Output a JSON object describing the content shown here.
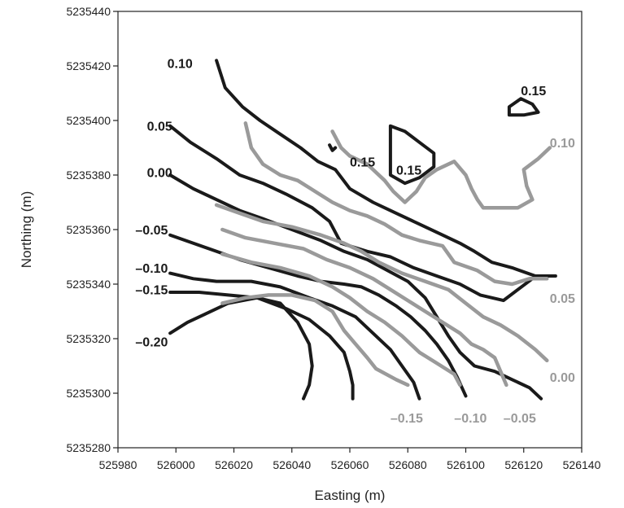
{
  "chart_data": {
    "type": "line",
    "subtype": "contour",
    "title": "",
    "xlabel": "Easting (m)",
    "ylabel": "Northing (m)",
    "xlim": [
      525980,
      526140
    ],
    "ylim": [
      5235280,
      5235440
    ],
    "xticks": [
      525980,
      526000,
      526020,
      526040,
      526060,
      526080,
      526100,
      526120,
      526140
    ],
    "yticks": [
      5235280,
      5235300,
      5235320,
      5235340,
      5235360,
      5235380,
      5235400,
      5235420,
      5235440
    ],
    "grid": false,
    "colors": {
      "black_series": "#1a1a1a",
      "gray_series": "#9a9a9a"
    },
    "series": [
      {
        "group": "black",
        "level": "0.10",
        "label_text": "0.10",
        "label_at": [
          525997,
          5235421
        ],
        "points": [
          [
            526014,
            5235422
          ],
          [
            526017,
            5235412
          ],
          [
            526023,
            5235405
          ],
          [
            526029,
            5235400
          ],
          [
            526036,
            5235395
          ],
          [
            526043,
            5235390
          ],
          [
            526049,
            5235385
          ],
          [
            526055,
            5235382
          ],
          [
            526060,
            5235375
          ],
          [
            526068,
            5235370
          ],
          [
            526076,
            5235366
          ],
          [
            526084,
            5235362
          ],
          [
            526092,
            5235358
          ],
          [
            526098,
            5235355
          ],
          [
            526103,
            5235352
          ],
          [
            526109,
            5235348
          ],
          [
            526116,
            5235346
          ],
          [
            526124,
            5235343
          ],
          [
            526131,
            5235343
          ]
        ]
      },
      {
        "group": "black",
        "level": "0.05",
        "label_text": "0.05",
        "label_at": [
          525990,
          5235398
        ],
        "points": [
          [
            525998,
            5235398
          ],
          [
            526005,
            5235392
          ],
          [
            526014,
            5235386
          ],
          [
            526022,
            5235380
          ],
          [
            526030,
            5235377
          ],
          [
            526038,
            5235373
          ],
          [
            526047,
            5235368
          ],
          [
            526053,
            5235363
          ],
          [
            526057,
            5235355
          ],
          [
            526066,
            5235352
          ],
          [
            526074,
            5235350
          ],
          [
            526082,
            5235346
          ],
          [
            526090,
            5235343
          ],
          [
            526098,
            5235340
          ],
          [
            526105,
            5235336
          ],
          [
            526113,
            5235334
          ],
          [
            526123,
            5235342
          ]
        ]
      },
      {
        "group": "black",
        "level": "0.00",
        "label_text": "0.00",
        "label_at": [
          525990,
          5235381
        ],
        "points": [
          [
            525998,
            5235380
          ],
          [
            526006,
            5235375
          ],
          [
            526014,
            5235371
          ],
          [
            526022,
            5235367
          ],
          [
            526030,
            5235364
          ],
          [
            526040,
            5235360
          ],
          [
            526050,
            5235356
          ],
          [
            526058,
            5235352
          ],
          [
            526066,
            5235349
          ],
          [
            526073,
            5235345
          ],
          [
            526080,
            5235341
          ],
          [
            526086,
            5235335
          ],
          [
            526090,
            5235328
          ],
          [
            526094,
            5235321
          ],
          [
            526098,
            5235315
          ],
          [
            526103,
            5235310
          ],
          [
            526110,
            5235308
          ],
          [
            526116,
            5235305
          ],
          [
            526122,
            5235302
          ],
          [
            526126,
            5235298
          ]
        ]
      },
      {
        "group": "black",
        "level": "-0.05",
        "label_text": "–0.05",
        "label_at": [
          525986,
          5235360
        ],
        "points": [
          [
            525998,
            5235358
          ],
          [
            526006,
            5235355
          ],
          [
            526014,
            5235352
          ],
          [
            526022,
            5235349
          ],
          [
            526032,
            5235346
          ],
          [
            526042,
            5235343
          ],
          [
            526050,
            5235341
          ],
          [
            526058,
            5235340
          ],
          [
            526064,
            5235339
          ],
          [
            526070,
            5235336
          ],
          [
            526076,
            5235332
          ],
          [
            526081,
            5235328
          ],
          [
            526086,
            5235323
          ],
          [
            526090,
            5235318
          ],
          [
            526094,
            5235312
          ],
          [
            526097,
            5235306
          ],
          [
            526100,
            5235299
          ]
        ]
      },
      {
        "group": "black",
        "level": "-0.10",
        "label_text": "–0.10",
        "label_at": [
          525986,
          5235346
        ],
        "points": [
          [
            525998,
            5235344
          ],
          [
            526006,
            5235342
          ],
          [
            526014,
            5235341
          ],
          [
            526026,
            5235341
          ],
          [
            526036,
            5235339
          ],
          [
            526046,
            5235335
          ],
          [
            526054,
            5235332
          ],
          [
            526062,
            5235328
          ],
          [
            526068,
            5235322
          ],
          [
            526074,
            5235316
          ],
          [
            526078,
            5235310
          ],
          [
            526082,
            5235304
          ],
          [
            526084,
            5235298
          ]
        ]
      },
      {
        "group": "black",
        "level": "-0.15",
        "label_text": "–0.15",
        "label_at": [
          525986,
          5235338
        ],
        "points": [
          [
            525998,
            5235337
          ],
          [
            526008,
            5235337
          ],
          [
            526018,
            5235336
          ],
          [
            526028,
            5235335
          ],
          [
            526038,
            5235331
          ],
          [
            526046,
            5235327
          ],
          [
            526053,
            5235321
          ],
          [
            526058,
            5235315
          ],
          [
            526060,
            5235308
          ],
          [
            526061,
            5235303
          ],
          [
            526061,
            5235298
          ]
        ]
      },
      {
        "group": "black",
        "level": "-0.20",
        "label_text": "–0.20",
        "label_at": [
          525986,
          5235319
        ],
        "points": [
          [
            525998,
            5235322
          ],
          [
            526004,
            5235326
          ],
          [
            526010,
            5235329
          ],
          [
            526018,
            5235333
          ],
          [
            526028,
            5235335
          ],
          [
            526036,
            5235333
          ],
          [
            526042,
            5235326
          ],
          [
            526046,
            5235318
          ],
          [
            526047,
            5235310
          ],
          [
            526046,
            5235303
          ],
          [
            526044,
            5235298
          ]
        ]
      },
      {
        "group": "black",
        "level": "0.15",
        "label_text": "0.15",
        "label_at": [
          526060,
          5235385
        ],
        "points": [
          [
            526053,
            5235391
          ],
          [
            526054,
            5235389
          ],
          [
            526055,
            5235390
          ]
        ]
      },
      {
        "group": "black",
        "level": "0.15",
        "label_text": "0.15",
        "label_at": [
          526076,
          5235382
        ],
        "closed": true,
        "points": [
          [
            526074,
            5235398
          ],
          [
            526079,
            5235396
          ],
          [
            526084,
            5235392
          ],
          [
            526089,
            5235388
          ],
          [
            526089,
            5235383
          ],
          [
            526084,
            5235379
          ],
          [
            526079,
            5235377
          ],
          [
            526074,
            5235380
          ],
          [
            526074,
            5235386
          ],
          [
            526074,
            5235393
          ]
        ]
      },
      {
        "group": "black",
        "level": "0.15",
        "label_text": "0.15",
        "label_at": [
          526119,
          5235411
        ],
        "closed": true,
        "points": [
          [
            526115,
            5235405
          ],
          [
            526119,
            5235408
          ],
          [
            526123,
            5235406
          ],
          [
            526125,
            5235403
          ],
          [
            526120,
            5235402
          ],
          [
            526115,
            5235402
          ]
        ]
      },
      {
        "group": "gray",
        "level": "0.10",
        "label_text": "0.10",
        "label_at": [
          526129,
          5235392
        ],
        "points": [
          [
            526054,
            5235396
          ],
          [
            526057,
            5235390
          ],
          [
            526060,
            5235387
          ],
          [
            526066,
            5235384
          ],
          [
            526072,
            5235378
          ],
          [
            526075,
            5235374
          ],
          [
            526079,
            5235370
          ],
          [
            526083,
            5235374
          ],
          [
            526086,
            5235379
          ],
          [
            526090,
            5235382
          ],
          [
            526096,
            5235385
          ],
          [
            526100,
            5235380
          ],
          [
            526102,
            5235375
          ],
          [
            526104,
            5235371
          ],
          [
            526106,
            5235368
          ],
          [
            526112,
            5235368
          ],
          [
            526118,
            5235368
          ],
          [
            526123,
            5235371
          ],
          [
            526121,
            5235376
          ],
          [
            526120,
            5235382
          ],
          [
            526125,
            5235386
          ],
          [
            526129,
            5235390
          ]
        ]
      },
      {
        "group": "gray",
        "level": "0.05",
        "label_text": "0.05",
        "label_at": [
          526129,
          5235335
        ],
        "points": [
          [
            526024,
            5235399
          ],
          [
            526026,
            5235390
          ],
          [
            526030,
            5235384
          ],
          [
            526036,
            5235380
          ],
          [
            526042,
            5235378
          ],
          [
            526048,
            5235374
          ],
          [
            526054,
            5235370
          ],
          [
            526060,
            5235367
          ],
          [
            526066,
            5235365
          ],
          [
            526072,
            5235362
          ],
          [
            526078,
            5235358
          ],
          [
            526084,
            5235356
          ],
          [
            526092,
            5235354
          ],
          [
            526096,
            5235348
          ],
          [
            526104,
            5235345
          ],
          [
            526110,
            5235341
          ],
          [
            526116,
            5235340
          ],
          [
            526122,
            5235342
          ],
          [
            526128,
            5235342
          ]
        ]
      },
      {
        "group": "gray",
        "level": "0.00",
        "label_text": "0.00",
        "label_at": [
          526129,
          5235306
        ],
        "points": [
          [
            526014,
            5235369
          ],
          [
            526022,
            5235366
          ],
          [
            526030,
            5235363
          ],
          [
            526040,
            5235361
          ],
          [
            526050,
            5235358
          ],
          [
            526058,
            5235355
          ],
          [
            526064,
            5235352
          ],
          [
            526070,
            5235348
          ],
          [
            526078,
            5235344
          ],
          [
            526086,
            5235341
          ],
          [
            526094,
            5235338
          ],
          [
            526100,
            5235333
          ],
          [
            526106,
            5235328
          ],
          [
            526112,
            5235325
          ],
          [
            526118,
            5235321
          ],
          [
            526124,
            5235316
          ],
          [
            526128,
            5235312
          ]
        ]
      },
      {
        "group": "gray",
        "level": "-0.05",
        "label_text": "–0.05",
        "label_at": [
          526113,
          5235291
        ],
        "points": [
          [
            526016,
            5235360
          ],
          [
            526024,
            5235357
          ],
          [
            526034,
            5235355
          ],
          [
            526044,
            5235353
          ],
          [
            526052,
            5235349
          ],
          [
            526060,
            5235346
          ],
          [
            526068,
            5235342
          ],
          [
            526074,
            5235338
          ],
          [
            526080,
            5235334
          ],
          [
            526086,
            5235330
          ],
          [
            526092,
            5235326
          ],
          [
            526098,
            5235322
          ],
          [
            526102,
            5235318
          ],
          [
            526106,
            5235316
          ],
          [
            526110,
            5235313
          ],
          [
            526112,
            5235308
          ],
          [
            526114,
            5235303
          ]
        ]
      },
      {
        "group": "gray",
        "level": "-0.10",
        "label_text": "–0.10",
        "label_at": [
          526096,
          5235291
        ],
        "points": [
          [
            526016,
            5235351
          ],
          [
            526026,
            5235348
          ],
          [
            526036,
            5235346
          ],
          [
            526046,
            5235343
          ],
          [
            526054,
            5235339
          ],
          [
            526060,
            5235335
          ],
          [
            526066,
            5235330
          ],
          [
            526072,
            5235326
          ],
          [
            526078,
            5235321
          ],
          [
            526084,
            5235315
          ],
          [
            526090,
            5235311
          ],
          [
            526096,
            5235307
          ],
          [
            526098,
            5235303
          ]
        ]
      },
      {
        "group": "gray",
        "level": "-0.15",
        "label_text": "–0.15",
        "label_at": [
          526074,
          5235291
        ],
        "points": [
          [
            526016,
            5235333
          ],
          [
            526024,
            5235335
          ],
          [
            526032,
            5235336
          ],
          [
            526040,
            5235336
          ],
          [
            526048,
            5235334
          ],
          [
            526054,
            5235330
          ],
          [
            526058,
            5235323
          ],
          [
            526062,
            5235318
          ],
          [
            526066,
            5235313
          ],
          [
            526069,
            5235309
          ],
          [
            526076,
            5235305
          ],
          [
            526080,
            5235303
          ]
        ]
      }
    ]
  }
}
